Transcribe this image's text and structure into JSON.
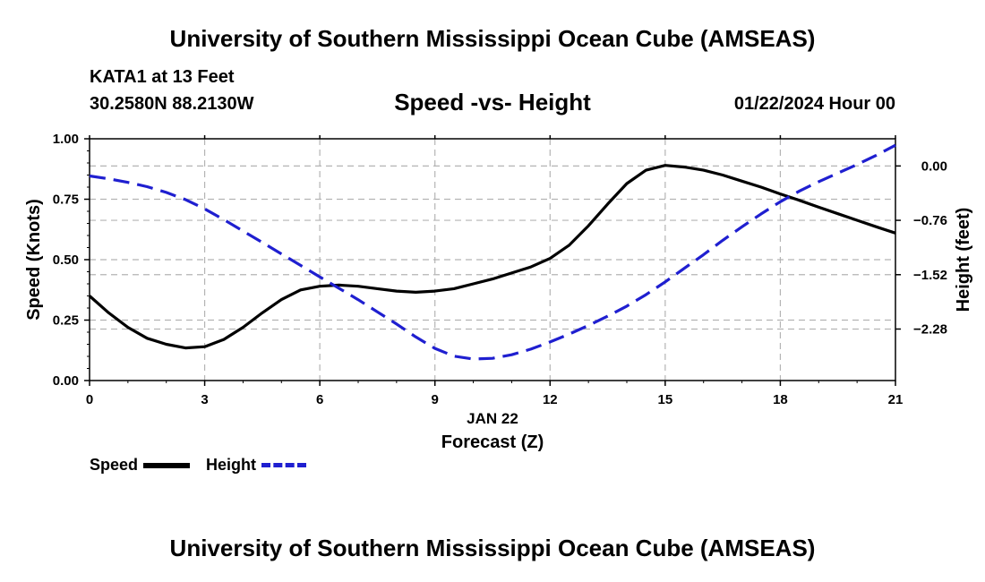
{
  "header": {
    "title": "University of Southern Mississippi Ocean Cube (AMSEAS)",
    "station": "KATA1 at 13 Feet",
    "coordinates": "30.2580N  88.2130W",
    "chart_title": "Speed -vs- Height",
    "date": "01/22/2024 Hour 00"
  },
  "footer": {
    "title": "University of Southern Mississippi Ocean Cube (AMSEAS)"
  },
  "legend": {
    "speed_label": "Speed",
    "height_label": "Height"
  },
  "colors": {
    "speed": "#000000",
    "height": "#1f1fd0",
    "grid": "#b4b4b4"
  },
  "chart_data": {
    "type": "line",
    "title": "Speed -vs- Height",
    "xlabel": "Forecast (Z)",
    "xlabel_date": "JAN 22",
    "ylabel_left": "Speed (Knots)",
    "ylabel_right": "Height (feet)",
    "xlim": [
      0,
      21
    ],
    "ylim_left": [
      0,
      1.0
    ],
    "ylim_right": [
      -3.0,
      0.38
    ],
    "x_ticks": [
      0,
      3,
      6,
      9,
      12,
      15,
      18,
      21
    ],
    "x_tick_labels": [
      "0",
      "3",
      "6",
      "9",
      "12",
      "15",
      "18",
      "21"
    ],
    "y_left_ticks": [
      0,
      0.25,
      0.5,
      0.75,
      1.0
    ],
    "y_left_tick_labels": [
      "0.00",
      "0.25",
      "0.50",
      "0.75",
      "1.00"
    ],
    "y_right_ticks": [
      0.0,
      -0.76,
      -1.52,
      -2.28
    ],
    "y_right_tick_labels": [
      "0.00",
      "−0.76",
      "−1.52",
      "−2.28"
    ],
    "grid": true,
    "series": [
      {
        "name": "Speed",
        "axis": "left",
        "style": "solid",
        "x": [
          0,
          0.5,
          1,
          1.5,
          2,
          2.5,
          3,
          3.5,
          4,
          4.5,
          5,
          5.5,
          6,
          6.5,
          7,
          7.5,
          8,
          8.5,
          9,
          9.5,
          10,
          10.5,
          11,
          11.5,
          12,
          12.5,
          13,
          13.5,
          14,
          14.5,
          15,
          15.5,
          16,
          16.5,
          17,
          17.5,
          18,
          18.5,
          19,
          19.5,
          20,
          20.5,
          21
        ],
        "values": [
          0.35,
          0.28,
          0.22,
          0.175,
          0.15,
          0.135,
          0.14,
          0.17,
          0.22,
          0.28,
          0.335,
          0.375,
          0.39,
          0.395,
          0.39,
          0.38,
          0.37,
          0.365,
          0.37,
          0.38,
          0.4,
          0.42,
          0.445,
          0.47,
          0.505,
          0.56,
          0.64,
          0.73,
          0.815,
          0.87,
          0.89,
          0.883,
          0.87,
          0.85,
          0.825,
          0.8,
          0.772,
          0.745,
          0.717,
          0.69,
          0.663,
          0.636,
          0.61
        ]
      },
      {
        "name": "Height",
        "axis": "right",
        "style": "dashed",
        "x": [
          0,
          0.5,
          1,
          1.5,
          2,
          2.5,
          3,
          3.5,
          4,
          4.5,
          5,
          5.5,
          6,
          6.5,
          7,
          7.5,
          8,
          8.5,
          9,
          9.5,
          10,
          10.5,
          11,
          11.5,
          12,
          12.5,
          13,
          13.5,
          14,
          14.5,
          15,
          15.5,
          16,
          16.5,
          17,
          17.5,
          18,
          18.5,
          19,
          19.5,
          20,
          20.5,
          21
        ],
        "values": [
          -0.14,
          -0.18,
          -0.23,
          -0.29,
          -0.37,
          -0.47,
          -0.6,
          -0.75,
          -0.91,
          -1.07,
          -1.23,
          -1.39,
          -1.55,
          -1.71,
          -1.87,
          -2.04,
          -2.21,
          -2.39,
          -2.55,
          -2.66,
          -2.7,
          -2.69,
          -2.64,
          -2.56,
          -2.46,
          -2.35,
          -2.23,
          -2.1,
          -1.96,
          -1.8,
          -1.62,
          -1.43,
          -1.24,
          -1.04,
          -0.85,
          -0.67,
          -0.5,
          -0.35,
          -0.22,
          -0.1,
          0.02,
          0.15,
          0.29
        ]
      }
    ]
  }
}
